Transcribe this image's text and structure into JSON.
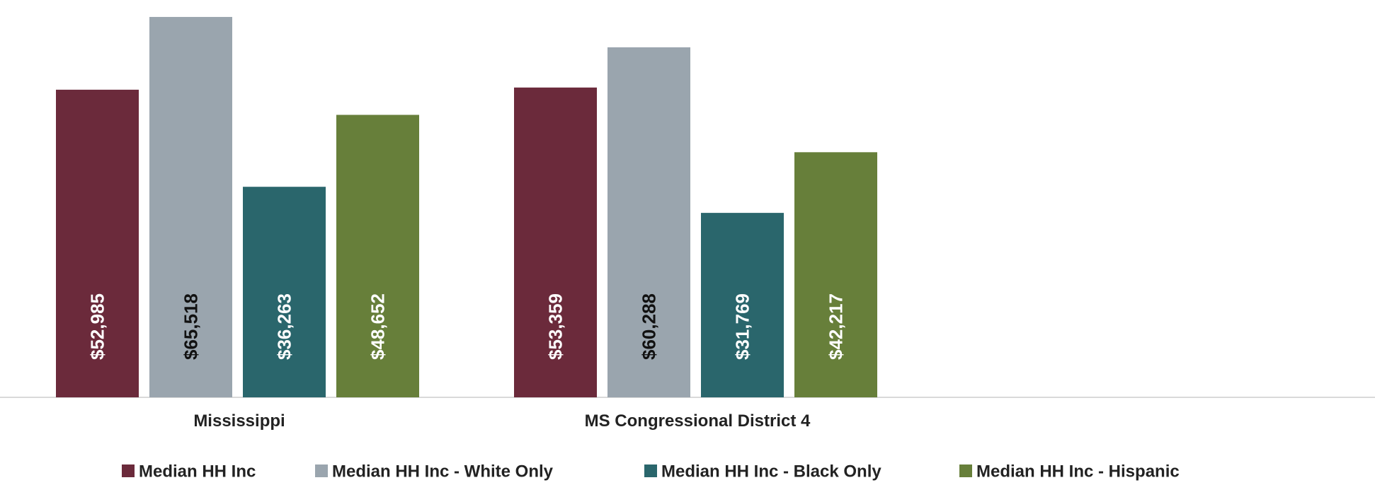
{
  "chart_data": {
    "type": "bar",
    "title": "",
    "xlabel": "",
    "ylabel": "",
    "ylim": [
      0,
      66000
    ],
    "grid": false,
    "legend_position": "bottom",
    "categories": [
      "Mississippi",
      "MS Congressional District 4"
    ],
    "series": [
      {
        "name": "Median HH Inc",
        "values": [
          52985,
          53359
        ],
        "labels": [
          "$52,985",
          "$53,359"
        ],
        "color": "#6b2a3b",
        "label_color": "#ffffff"
      },
      {
        "name": "Median HH Inc - White Only",
        "values": [
          65518,
          60288
        ],
        "labels": [
          "$65,518",
          "$60,288"
        ],
        "color": "#9aa5ae",
        "label_color": "#111111"
      },
      {
        "name": "Median HH Inc - Black Only",
        "values": [
          36263,
          31769
        ],
        "labels": [
          "$36,263",
          "$31,769"
        ],
        "color": "#2a666c",
        "label_color": "#ffffff"
      },
      {
        "name": "Median HH Inc - Hispanic",
        "values": [
          48652,
          42217
        ],
        "labels": [
          "$48,652",
          "$42,217"
        ],
        "color": "#677f3a",
        "label_color": "#ffffff"
      }
    ]
  }
}
